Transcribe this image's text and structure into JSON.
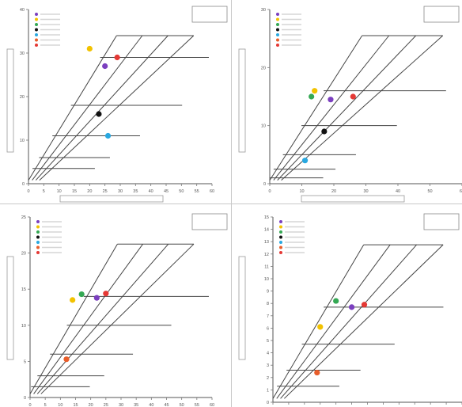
{
  "chart_data": [
    {
      "type": "scatter",
      "title": "",
      "xlabel": "",
      "ylabel": "",
      "xlim": [
        0,
        60
      ],
      "ylim": [
        0,
        40
      ],
      "x_ticks": [
        "0",
        "5",
        "10",
        "15",
        "20",
        "25",
        "30",
        "35",
        "40",
        "45",
        "50",
        "55",
        "60"
      ],
      "y_ticks": [
        "0",
        "10",
        "20",
        "30",
        "40"
      ],
      "grid": false,
      "legend_position": "top-left",
      "legend_items": [
        {
          "label": "",
          "color": "#7b3fbf"
        },
        {
          "label": "",
          "color": "#f2c200"
        },
        {
          "label": "",
          "color": "#34a853"
        },
        {
          "label": "",
          "color": "#111111"
        },
        {
          "label": "",
          "color": "#29a8e0"
        },
        {
          "label": "",
          "color": "#e85d2a"
        },
        {
          "label": "",
          "color": "#e53935"
        }
      ],
      "inset_box": {
        "line1": "",
        "line2": ""
      },
      "diagonal_lines": [
        {
          "label": ""
        },
        {
          "label": ""
        },
        {
          "label": ""
        },
        {
          "label": ""
        }
      ],
      "top_label": "",
      "horizontal_lines": [
        {
          "y": 3.5,
          "label": ""
        },
        {
          "y": 6,
          "label": ""
        },
        {
          "y": 11,
          "label": ""
        },
        {
          "y": 18,
          "label": ""
        },
        {
          "y": 29,
          "label": ""
        }
      ],
      "points": [
        {
          "x": 20,
          "y": 31,
          "color": "#f2c200"
        },
        {
          "x": 25,
          "y": 27,
          "color": "#7b3fbf"
        },
        {
          "x": 29,
          "y": 29,
          "color": "#e53935"
        },
        {
          "x": 23,
          "y": 16,
          "color": "#111111"
        },
        {
          "x": 26,
          "y": 11,
          "color": "#29a8e0"
        }
      ]
    },
    {
      "type": "scatter",
      "title": "",
      "xlabel": "",
      "ylabel": "",
      "xlim": [
        0,
        60
      ],
      "ylim": [
        0,
        30
      ],
      "x_ticks": [
        "0",
        "10",
        "20",
        "30",
        "40",
        "50",
        "60"
      ],
      "y_ticks": [
        "0",
        "10",
        "20",
        "30"
      ],
      "grid": false,
      "legend_position": "top-left",
      "legend_items": [
        {
          "label": "",
          "color": "#7b3fbf"
        },
        {
          "label": "",
          "color": "#f2c200"
        },
        {
          "label": "",
          "color": "#34a853"
        },
        {
          "label": "",
          "color": "#111111"
        },
        {
          "label": "",
          "color": "#29a8e0"
        },
        {
          "label": "",
          "color": "#e85d2a"
        },
        {
          "label": "",
          "color": "#e53935"
        }
      ],
      "inset_box": {
        "line1": "",
        "line2": ""
      },
      "diagonal_lines": [
        {
          "label": ""
        },
        {
          "label": ""
        },
        {
          "label": ""
        },
        {
          "label": ""
        }
      ],
      "top_label": "",
      "horizontal_lines": [
        {
          "y": 1,
          "label": ""
        },
        {
          "y": 2.5,
          "label": ""
        },
        {
          "y": 5,
          "label": ""
        },
        {
          "y": 10,
          "label": ""
        },
        {
          "y": 16,
          "label": ""
        }
      ],
      "points": [
        {
          "x": 14,
          "y": 16,
          "color": "#f2c200"
        },
        {
          "x": 13,
          "y": 15,
          "color": "#34a853"
        },
        {
          "x": 19,
          "y": 14.5,
          "color": "#7b3fbf"
        },
        {
          "x": 26,
          "y": 15,
          "color": "#e53935"
        },
        {
          "x": 17,
          "y": 9,
          "color": "#111111"
        },
        {
          "x": 11,
          "y": 4,
          "color": "#29a8e0"
        }
      ]
    },
    {
      "type": "scatter",
      "title": "",
      "xlabel": "",
      "ylabel": "",
      "xlim": [
        0,
        60
      ],
      "ylim": [
        0,
        25
      ],
      "x_ticks": [
        "0",
        "5",
        "10",
        "15",
        "20",
        "25",
        "30",
        "35",
        "40",
        "45",
        "50",
        "55",
        "60"
      ],
      "y_ticks": [
        "0",
        "5",
        "10",
        "15",
        "20",
        "25"
      ],
      "grid": false,
      "legend_position": "top-left",
      "legend_items": [
        {
          "label": "",
          "color": "#7b3fbf"
        },
        {
          "label": "",
          "color": "#f2c200"
        },
        {
          "label": "",
          "color": "#34a853"
        },
        {
          "label": "",
          "color": "#111111"
        },
        {
          "label": "",
          "color": "#29a8e0"
        },
        {
          "label": "",
          "color": "#e85d2a"
        },
        {
          "label": "",
          "color": "#e53935"
        }
      ],
      "inset_box": {
        "line1": "",
        "line2": ""
      },
      "diagonal_lines": [
        {
          "label": ""
        },
        {
          "label": ""
        },
        {
          "label": ""
        },
        {
          "label": ""
        }
      ],
      "top_label": "",
      "horizontal_lines": [
        {
          "y": 1.5,
          "label": ""
        },
        {
          "y": 3,
          "label": ""
        },
        {
          "y": 6,
          "label": ""
        },
        {
          "y": 10,
          "label": ""
        },
        {
          "y": 14,
          "label": ""
        }
      ],
      "points": [
        {
          "x": 14,
          "y": 13.5,
          "color": "#f2c200"
        },
        {
          "x": 17,
          "y": 14.3,
          "color": "#34a853"
        },
        {
          "x": 22,
          "y": 13.8,
          "color": "#7b3fbf"
        },
        {
          "x": 25,
          "y": 14.4,
          "color": "#e53935"
        },
        {
          "x": 12,
          "y": 5.3,
          "color": "#e85d2a"
        }
      ]
    },
    {
      "type": "scatter",
      "title": "",
      "xlabel": "",
      "ylabel": "",
      "xlim": [
        0,
        60
      ],
      "ylim": [
        0,
        15
      ],
      "x_ticks": [
        "0",
        "5",
        "10",
        "15",
        "20",
        "25",
        "30",
        "35",
        "40",
        "45",
        "50",
        "55",
        "60"
      ],
      "y_ticks": [
        "0",
        "1",
        "2",
        "3",
        "4",
        "5",
        "6",
        "7",
        "8",
        "9",
        "10",
        "11",
        "12",
        "13",
        "14",
        "15"
      ],
      "grid": false,
      "legend_position": "top-left",
      "legend_items": [
        {
          "label": "",
          "color": "#7b3fbf"
        },
        {
          "label": "",
          "color": "#f2c200"
        },
        {
          "label": "",
          "color": "#34a853"
        },
        {
          "label": "",
          "color": "#111111"
        },
        {
          "label": "",
          "color": "#29a8e0"
        },
        {
          "label": "",
          "color": "#e85d2a"
        },
        {
          "label": "",
          "color": "#e53935"
        }
      ],
      "inset_box": {
        "line1": "",
        "line2": ""
      },
      "diagonal_lines": [
        {
          "label": ""
        },
        {
          "label": ""
        },
        {
          "label": ""
        },
        {
          "label": ""
        }
      ],
      "top_label": "",
      "horizontal_lines": [
        {
          "y": 1.3,
          "label": ""
        },
        {
          "y": 2.6,
          "label": ""
        },
        {
          "y": 4.7,
          "label": ""
        },
        {
          "y": 7.7,
          "label": ""
        }
      ],
      "points": [
        {
          "x": 20,
          "y": 8.2,
          "color": "#34a853"
        },
        {
          "x": 25,
          "y": 7.7,
          "color": "#7b3fbf"
        },
        {
          "x": 29,
          "y": 7.9,
          "color": "#e53935"
        },
        {
          "x": 15,
          "y": 6.1,
          "color": "#f2c200"
        },
        {
          "x": 14,
          "y": 2.4,
          "color": "#e85d2a"
        }
      ]
    }
  ]
}
